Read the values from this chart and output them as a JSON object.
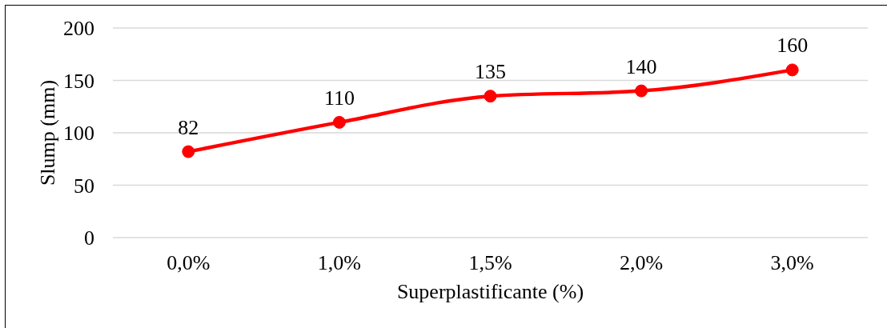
{
  "chart_data": {
    "type": "line",
    "xlabel": "Superplastificante (%)",
    "ylabel": "Slump (mm)",
    "categories": [
      "0,0%",
      "1,0%",
      "1,5%",
      "2,0%",
      "3,0%"
    ],
    "values": [
      82,
      110,
      135,
      140,
      160
    ],
    "color": "#ff0000",
    "ylim": [
      0,
      200
    ],
    "yticks": [
      0,
      50,
      100,
      150,
      200
    ],
    "grid": "y",
    "marker": "circle",
    "line_style": "solid",
    "data_labels": true
  }
}
